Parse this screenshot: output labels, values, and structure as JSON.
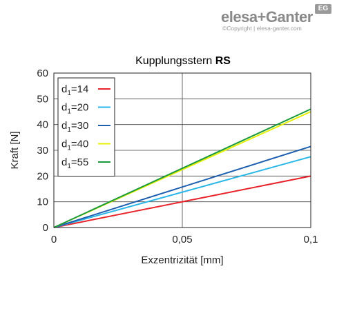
{
  "brand": {
    "logo_text": "elesa+Ganter",
    "logo_badge": "EG",
    "copyright": "©Copyright | elesa-ganter.com"
  },
  "chart_data": {
    "type": "line",
    "title": "Kupplungsstern",
    "title_bold": "RS",
    "xlabel": "Exzentrizität [mm]",
    "ylabel": "Kraft [N]",
    "xlim": [
      0,
      0.1
    ],
    "ylim": [
      0,
      60
    ],
    "x_ticks": [
      0,
      0.05,
      0.1
    ],
    "x_tick_labels": [
      "0",
      "0,05",
      "0,1"
    ],
    "y_ticks": [
      0,
      10,
      20,
      30,
      40,
      50,
      60
    ],
    "y_tick_labels": [
      "0",
      "10",
      "20",
      "30",
      "40",
      "50",
      "60"
    ],
    "grid": true,
    "legend_position": "top-left",
    "legend_prefix": "d",
    "legend_sub": "1",
    "series": [
      {
        "name": "=14",
        "color": "#e8232a",
        "x": [
          0,
          0.1
        ],
        "y": [
          0,
          20
        ]
      },
      {
        "name": "=20",
        "color": "#29b6e8",
        "x": [
          0,
          0.1
        ],
        "y": [
          0,
          27.5
        ]
      },
      {
        "name": "=30",
        "color": "#1c5fb0",
        "x": [
          0,
          0.1
        ],
        "y": [
          0,
          31.5
        ]
      },
      {
        "name": "=40",
        "color": "#e6f000",
        "x": [
          0,
          0.1
        ],
        "y": [
          0,
          45
        ]
      },
      {
        "name": "=55",
        "color": "#1a9a3c",
        "x": [
          0,
          0.1
        ],
        "y": [
          0,
          46
        ]
      }
    ]
  }
}
